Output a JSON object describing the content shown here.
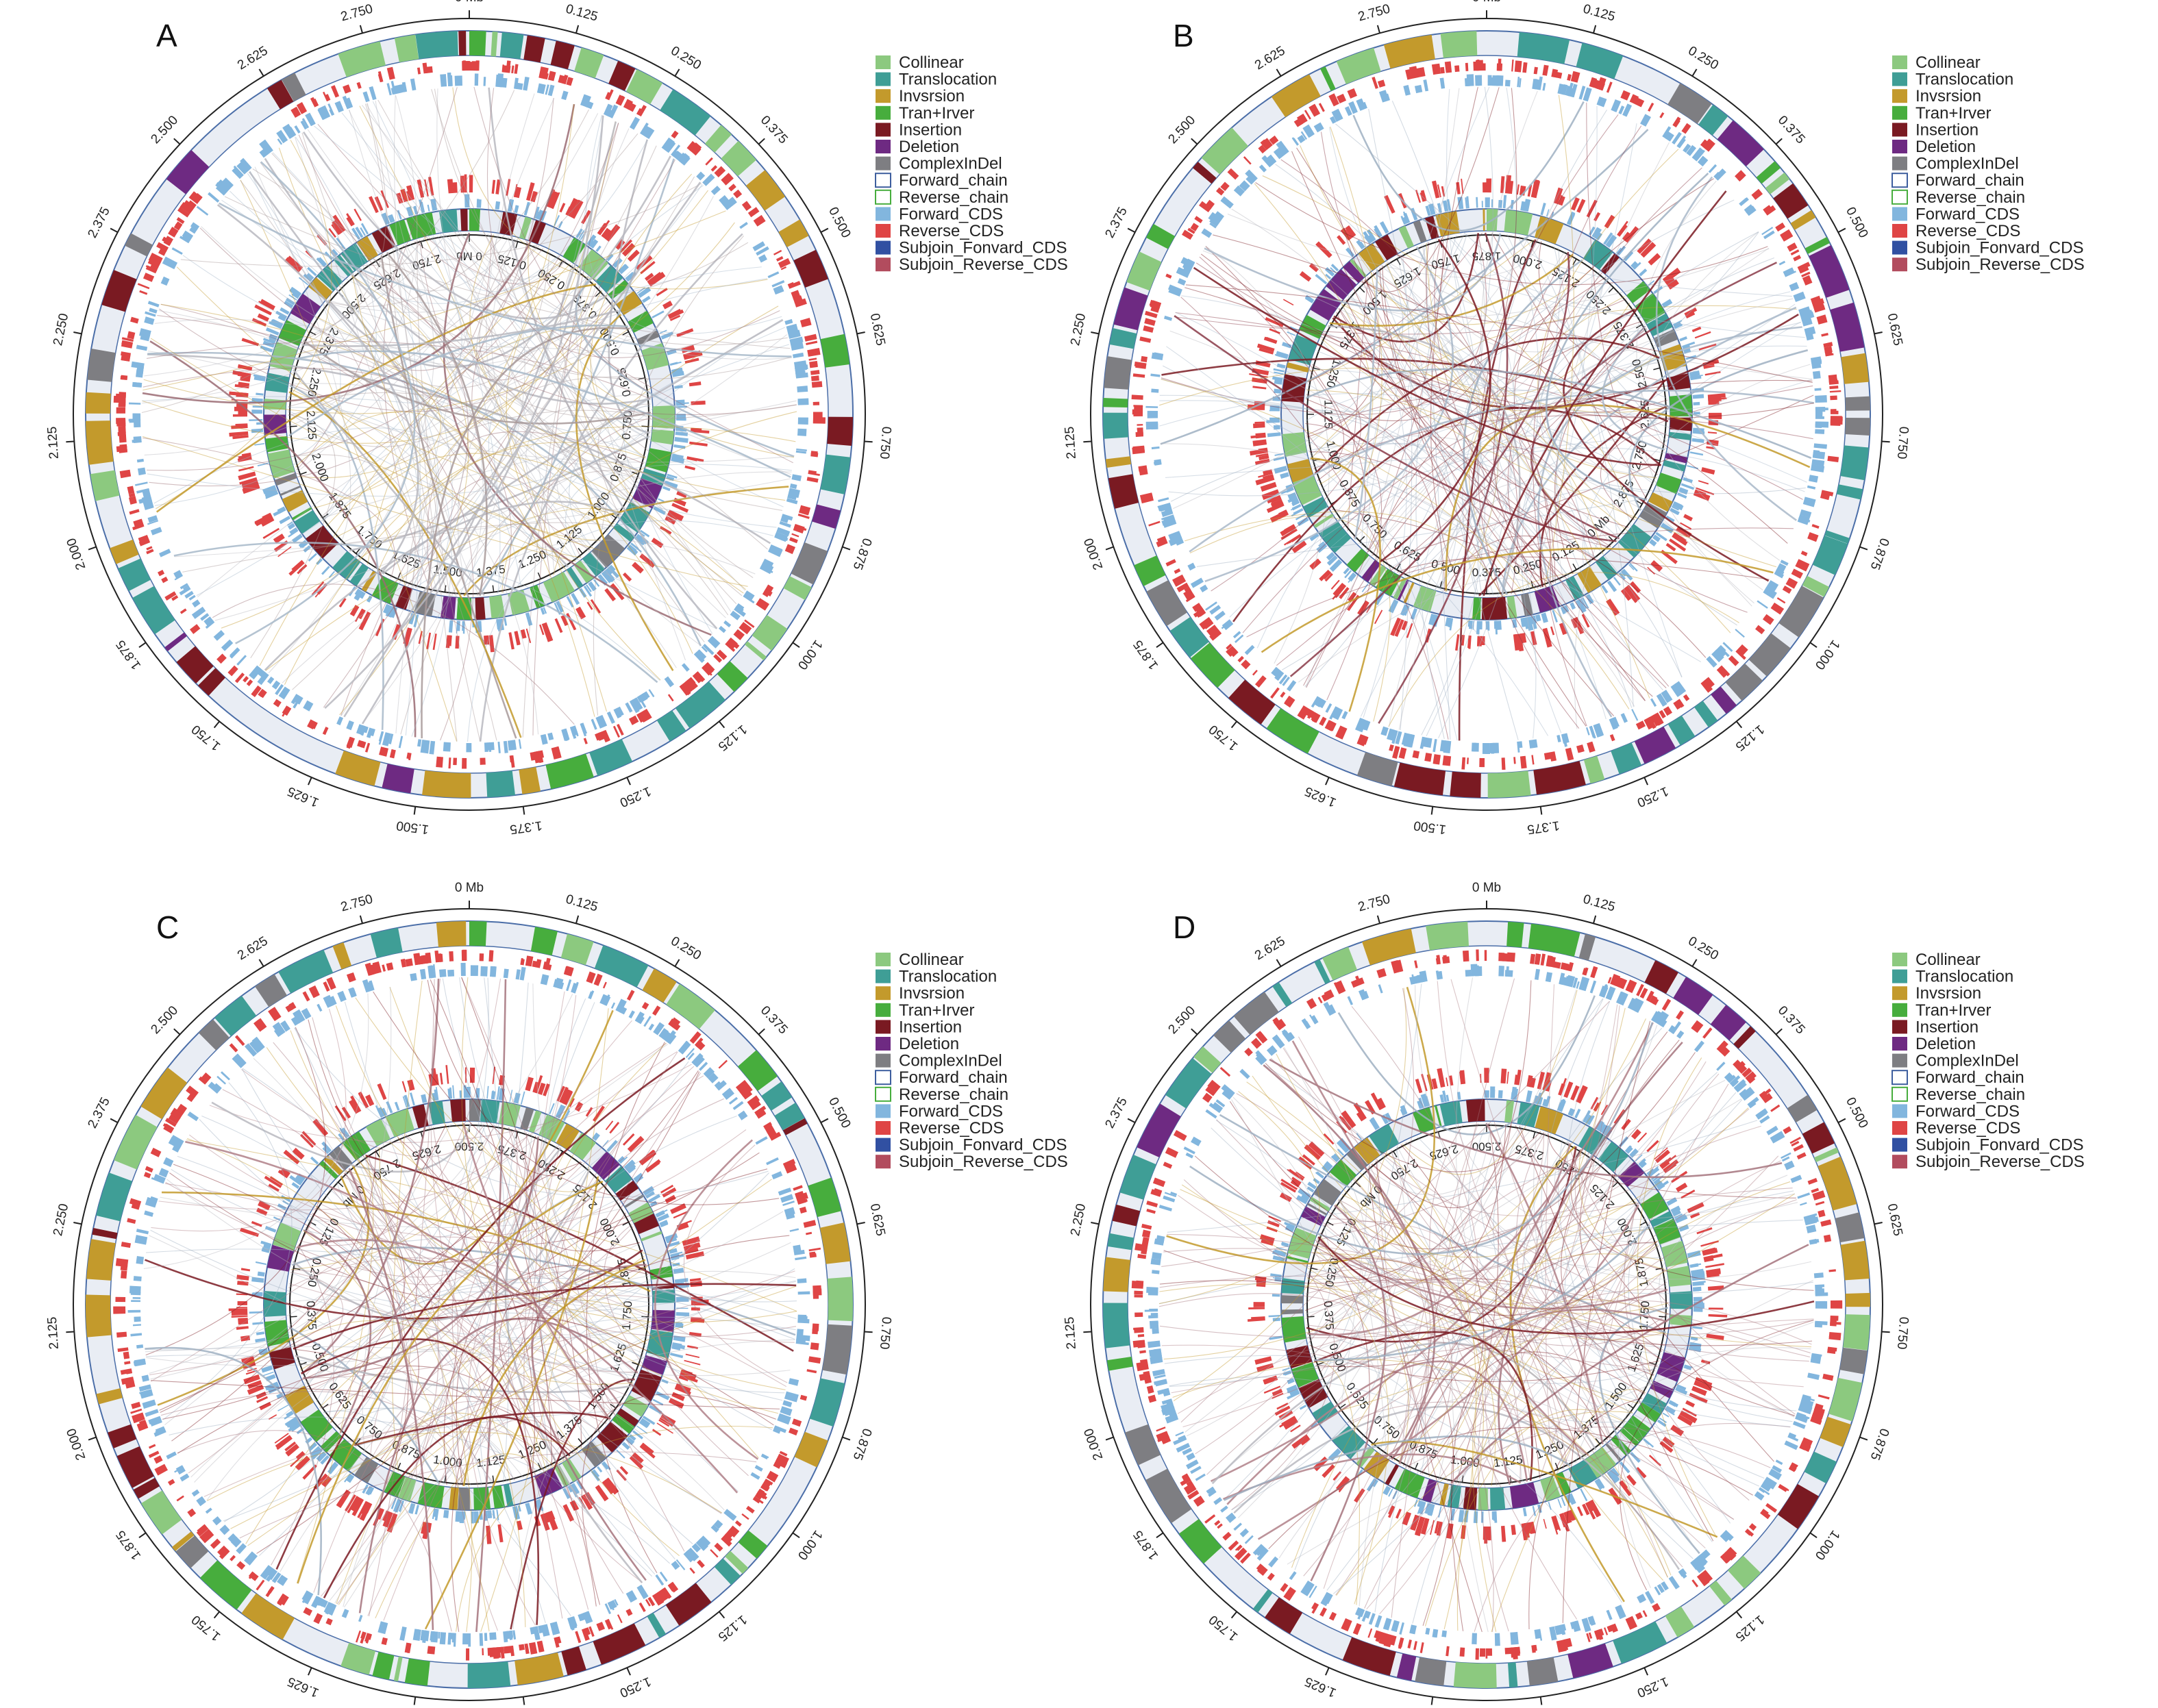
{
  "legend": [
    {
      "label": "Collinear",
      "color": "#8cc97f",
      "style": "fill"
    },
    {
      "label": "Translocation",
      "color": "#3f9e96",
      "style": "fill"
    },
    {
      "label": "Invsrsion",
      "color": "#c39a2c",
      "style": "fill"
    },
    {
      "label": "Tran+Irver",
      "color": "#47ad3d",
      "style": "fill"
    },
    {
      "label": "Insertion",
      "color": "#7a1a22",
      "style": "fill"
    },
    {
      "label": "Deletion",
      "color": "#6e2a82",
      "style": "fill"
    },
    {
      "label": "ComplexInDel",
      "color": "#7e7e82",
      "style": "fill"
    },
    {
      "label": "Forward_chain",
      "color": "#3d5e9e",
      "style": "outline"
    },
    {
      "label": "Reverse_chain",
      "color": "#47ad3d",
      "style": "outline"
    },
    {
      "label": "Forward_CDS",
      "color": "#82b6de",
      "style": "fill"
    },
    {
      "label": "Reverse_CDS",
      "color": "#df4545",
      "style": "fill"
    },
    {
      "label": "Subjoin_Fonvard_CDS",
      "color": "#3150a2",
      "style": "fill"
    },
    {
      "label": "Subjoin_Reverse_CDS",
      "color": "#b24c5e",
      "style": "fill"
    }
  ],
  "outer_ticks": [
    "0 Mb",
    "0.125",
    "0.250",
    "0.375",
    "0.500",
    "0.625",
    "0.750",
    "0.875",
    "1.000",
    "1.125",
    "1.250",
    "1.375",
    "1.500",
    "1.625",
    "1.750",
    "1.875",
    "2.000",
    "2.125",
    "2.250",
    "2.375",
    "2.500",
    "2.625",
    "2.750"
  ],
  "panels": [
    {
      "letter": "A",
      "inner_ticks": [
        "0 Mb",
        "0.125",
        "0.250",
        "0.375",
        "0.500",
        "0.625",
        "0.750",
        "0.875",
        "1.000",
        "1.125",
        "1.250",
        "1.375",
        "1.500",
        "1.625",
        "1.750",
        "1.875",
        "2.000",
        "2.125",
        "2.250",
        "2.375",
        "2.500",
        "2.625",
        "2.750"
      ],
      "link_palette": [
        "#b9b9bf",
        "#b9b9bf",
        "#a89a9a",
        "#c39a2c",
        "#9a6a72",
        "#a7b8c9"
      ]
    },
    {
      "letter": "B",
      "inner_ticks": [
        "1.875",
        "2.000",
        "2.125",
        "2.250",
        "2.375",
        "2.500",
        "2.625",
        "2.750",
        "2.875",
        "0 Mb",
        "0.125",
        "0.250",
        "0.375",
        "0.500",
        "0.625",
        "0.750",
        "0.875",
        "1.000",
        "1.125",
        "1.250",
        "1.375",
        "1.500",
        "1.625",
        "1.750"
      ],
      "link_palette": [
        "#9fb0c2",
        "#a9b9c9",
        "#8a3a48",
        "#b9b9bf",
        "#c39a2c",
        "#7a1a22"
      ]
    },
    {
      "letter": "C",
      "inner_ticks": [
        "2.500",
        "2.375",
        "2.250",
        "2.125",
        "2.000",
        "1.875",
        "1.750",
        "1.625",
        "1.500",
        "1.375",
        "1.250",
        "1.125",
        "1.000",
        "0.875",
        "0.750",
        "0.625",
        "0.500",
        "0.375",
        "0.250",
        "0.125",
        "0 Mb",
        "2.750",
        "2.625"
      ],
      "link_palette": [
        "#a5737d",
        "#b08088",
        "#7a1a22",
        "#9fb0c2",
        "#b9b9bf",
        "#c39a2c"
      ]
    },
    {
      "letter": "D",
      "inner_ticks": [
        "2.500",
        "2.375",
        "2.250",
        "2.125",
        "2.000",
        "1.875",
        "1.750",
        "1.625",
        "1.500",
        "1.375",
        "1.250",
        "1.125",
        "1.000",
        "0.875",
        "0.750",
        "0.625",
        "0.500",
        "0.375",
        "0.250",
        "0.125",
        "0 Mb",
        "2.750",
        "2.625"
      ],
      "link_palette": [
        "#a5737d",
        "#9fb0c2",
        "#b9b9bf",
        "#c39a2c",
        "#7a1a22",
        "#b08088"
      ]
    }
  ]
}
